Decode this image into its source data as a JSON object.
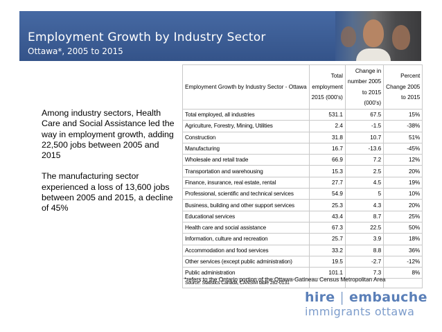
{
  "header": {
    "title": "Employment Growth by Industry Sector",
    "subtitle": "Ottawa*, 2005 to 2015"
  },
  "left_text": {
    "para1": "Among industry sectors, Health Care and Social Assistance led the way in employment growth, adding 22,500 jobs between 2005 and 2015",
    "para2": "The manufacturing sector experienced a loss of 13,600 jobs between 2005 and 2015, a decline of 45%"
  },
  "table": {
    "headers": {
      "sector": "Employment Growth by Industry Sector - Ottawa",
      "total": [
        "Total",
        "employment",
        "2015 (000's)"
      ],
      "change": [
        "Change in",
        "number 2005",
        "to 2015",
        "(000's)"
      ],
      "percent": [
        "Percent",
        "Change 2005",
        "to 2015"
      ]
    },
    "rows": [
      {
        "sector": "Total employed, all industries",
        "total": "531.1",
        "change": "67.5",
        "percent": "15%"
      },
      {
        "sector": "Agriculture, Forestry, Mining, Utilities",
        "total": "2.4",
        "change": "-1.5",
        "percent": "-38%"
      },
      {
        "sector": "Construction",
        "total": "31.8",
        "change": "10.7",
        "percent": "51%"
      },
      {
        "sector": "Manufacturing",
        "total": "16.7",
        "change": "-13.6",
        "percent": "-45%"
      },
      {
        "sector": "Wholesale and retail trade",
        "total": "66.9",
        "change": "7.2",
        "percent": "12%"
      },
      {
        "sector": "Transportation and warehousing",
        "total": "15.3",
        "change": "2.5",
        "percent": "20%"
      },
      {
        "sector": "Finance, insurance, real estate, rental",
        "total": "27.7",
        "change": "4.5",
        "percent": "19%"
      },
      {
        "sector": "Professional, scientific and technical services",
        "total": "54.9",
        "change": "5",
        "percent": "10%"
      },
      {
        "sector": "Business, building and other support services",
        "total": "25.3",
        "change": "4.3",
        "percent": "20%"
      },
      {
        "sector": "Educational services",
        "total": "43.4",
        "change": "8.7",
        "percent": "25%"
      },
      {
        "sector": "Health care and social assistance",
        "total": "67.3",
        "change": "22.5",
        "percent": "50%"
      },
      {
        "sector": "Information, culture and recreation",
        "total": "25.7",
        "change": "3.9",
        "percent": "18%"
      },
      {
        "sector": "Accommodation and food services",
        "total": "33.2",
        "change": "8.8",
        "percent": "36%"
      },
      {
        "sector": "Other services (except public administration)",
        "total": "19.5",
        "change": "-2.7",
        "percent": "-12%"
      },
      {
        "sector": "Public administration",
        "total": "101.1",
        "change": "7.3",
        "percent": "8%"
      }
    ],
    "source": "Source: Statistics Canada, CANSIM table 282-0131"
  },
  "footnote": "*refers to the Ontario portion of the Ottawa-Gatineau Census Metropolitan Area",
  "logo": {
    "hire": "hire",
    "separator": "|",
    "embauche": "embauche",
    "line2": "immigrants ottawa"
  },
  "colors": {
    "banner": "#3f5f97",
    "logo_primary": "#5a7fb8",
    "logo_secondary": "#7c9ccb"
  }
}
